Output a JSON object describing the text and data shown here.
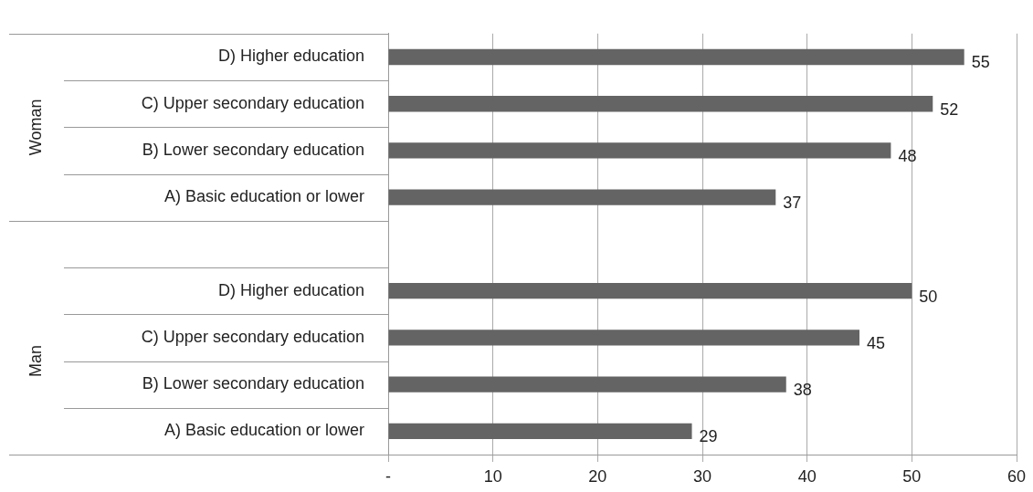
{
  "chart_data": {
    "type": "bar",
    "orientation": "horizontal",
    "categories": [
      "D) Higher education",
      "C) Upper secondary education",
      "B) Lower secondary education",
      "A) Basic education or lower",
      null,
      "D) Higher education",
      "C) Upper secondary education",
      "B) Lower secondary education",
      "A) Basic education or lower"
    ],
    "values": [
      55,
      52,
      48,
      37,
      null,
      50,
      45,
      38,
      29
    ],
    "color": "#646464",
    "xlim": [
      0,
      60
    ],
    "xticks": [
      {
        "value": 0,
        "label": "-"
      },
      10,
      20,
      30,
      40,
      50,
      60
    ],
    "grid": "x",
    "data_labels": true,
    "annotations": [
      "Woman",
      "Man"
    ]
  }
}
